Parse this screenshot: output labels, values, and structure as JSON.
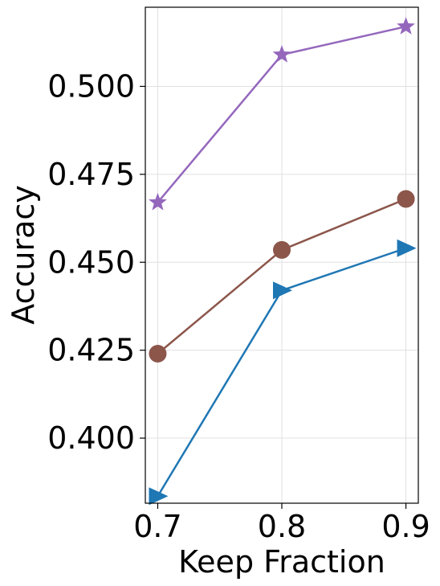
{
  "chart_data": {
    "type": "line",
    "xlabel": "Keep Fraction",
    "ylabel": "Accuracy",
    "x": [
      0.7,
      0.8,
      0.9
    ],
    "xticks": [
      "0.7",
      "0.8",
      "0.9"
    ],
    "yticks": [
      "0.400",
      "0.425",
      "0.450",
      "0.475",
      "0.500"
    ],
    "xlim": [
      0.69,
      0.91
    ],
    "ylim": [
      0.3815,
      0.5225
    ],
    "grid": true,
    "series": [
      {
        "marker": "star",
        "color": "#9467bd",
        "values": [
          0.467,
          0.509,
          0.517
        ]
      },
      {
        "marker": "circle",
        "color": "#8c564b",
        "values": [
          0.424,
          0.4535,
          0.468
        ]
      },
      {
        "marker": "triangle-right",
        "color": "#1f77b4",
        "values": [
          0.3835,
          0.442,
          0.454
        ]
      }
    ]
  }
}
